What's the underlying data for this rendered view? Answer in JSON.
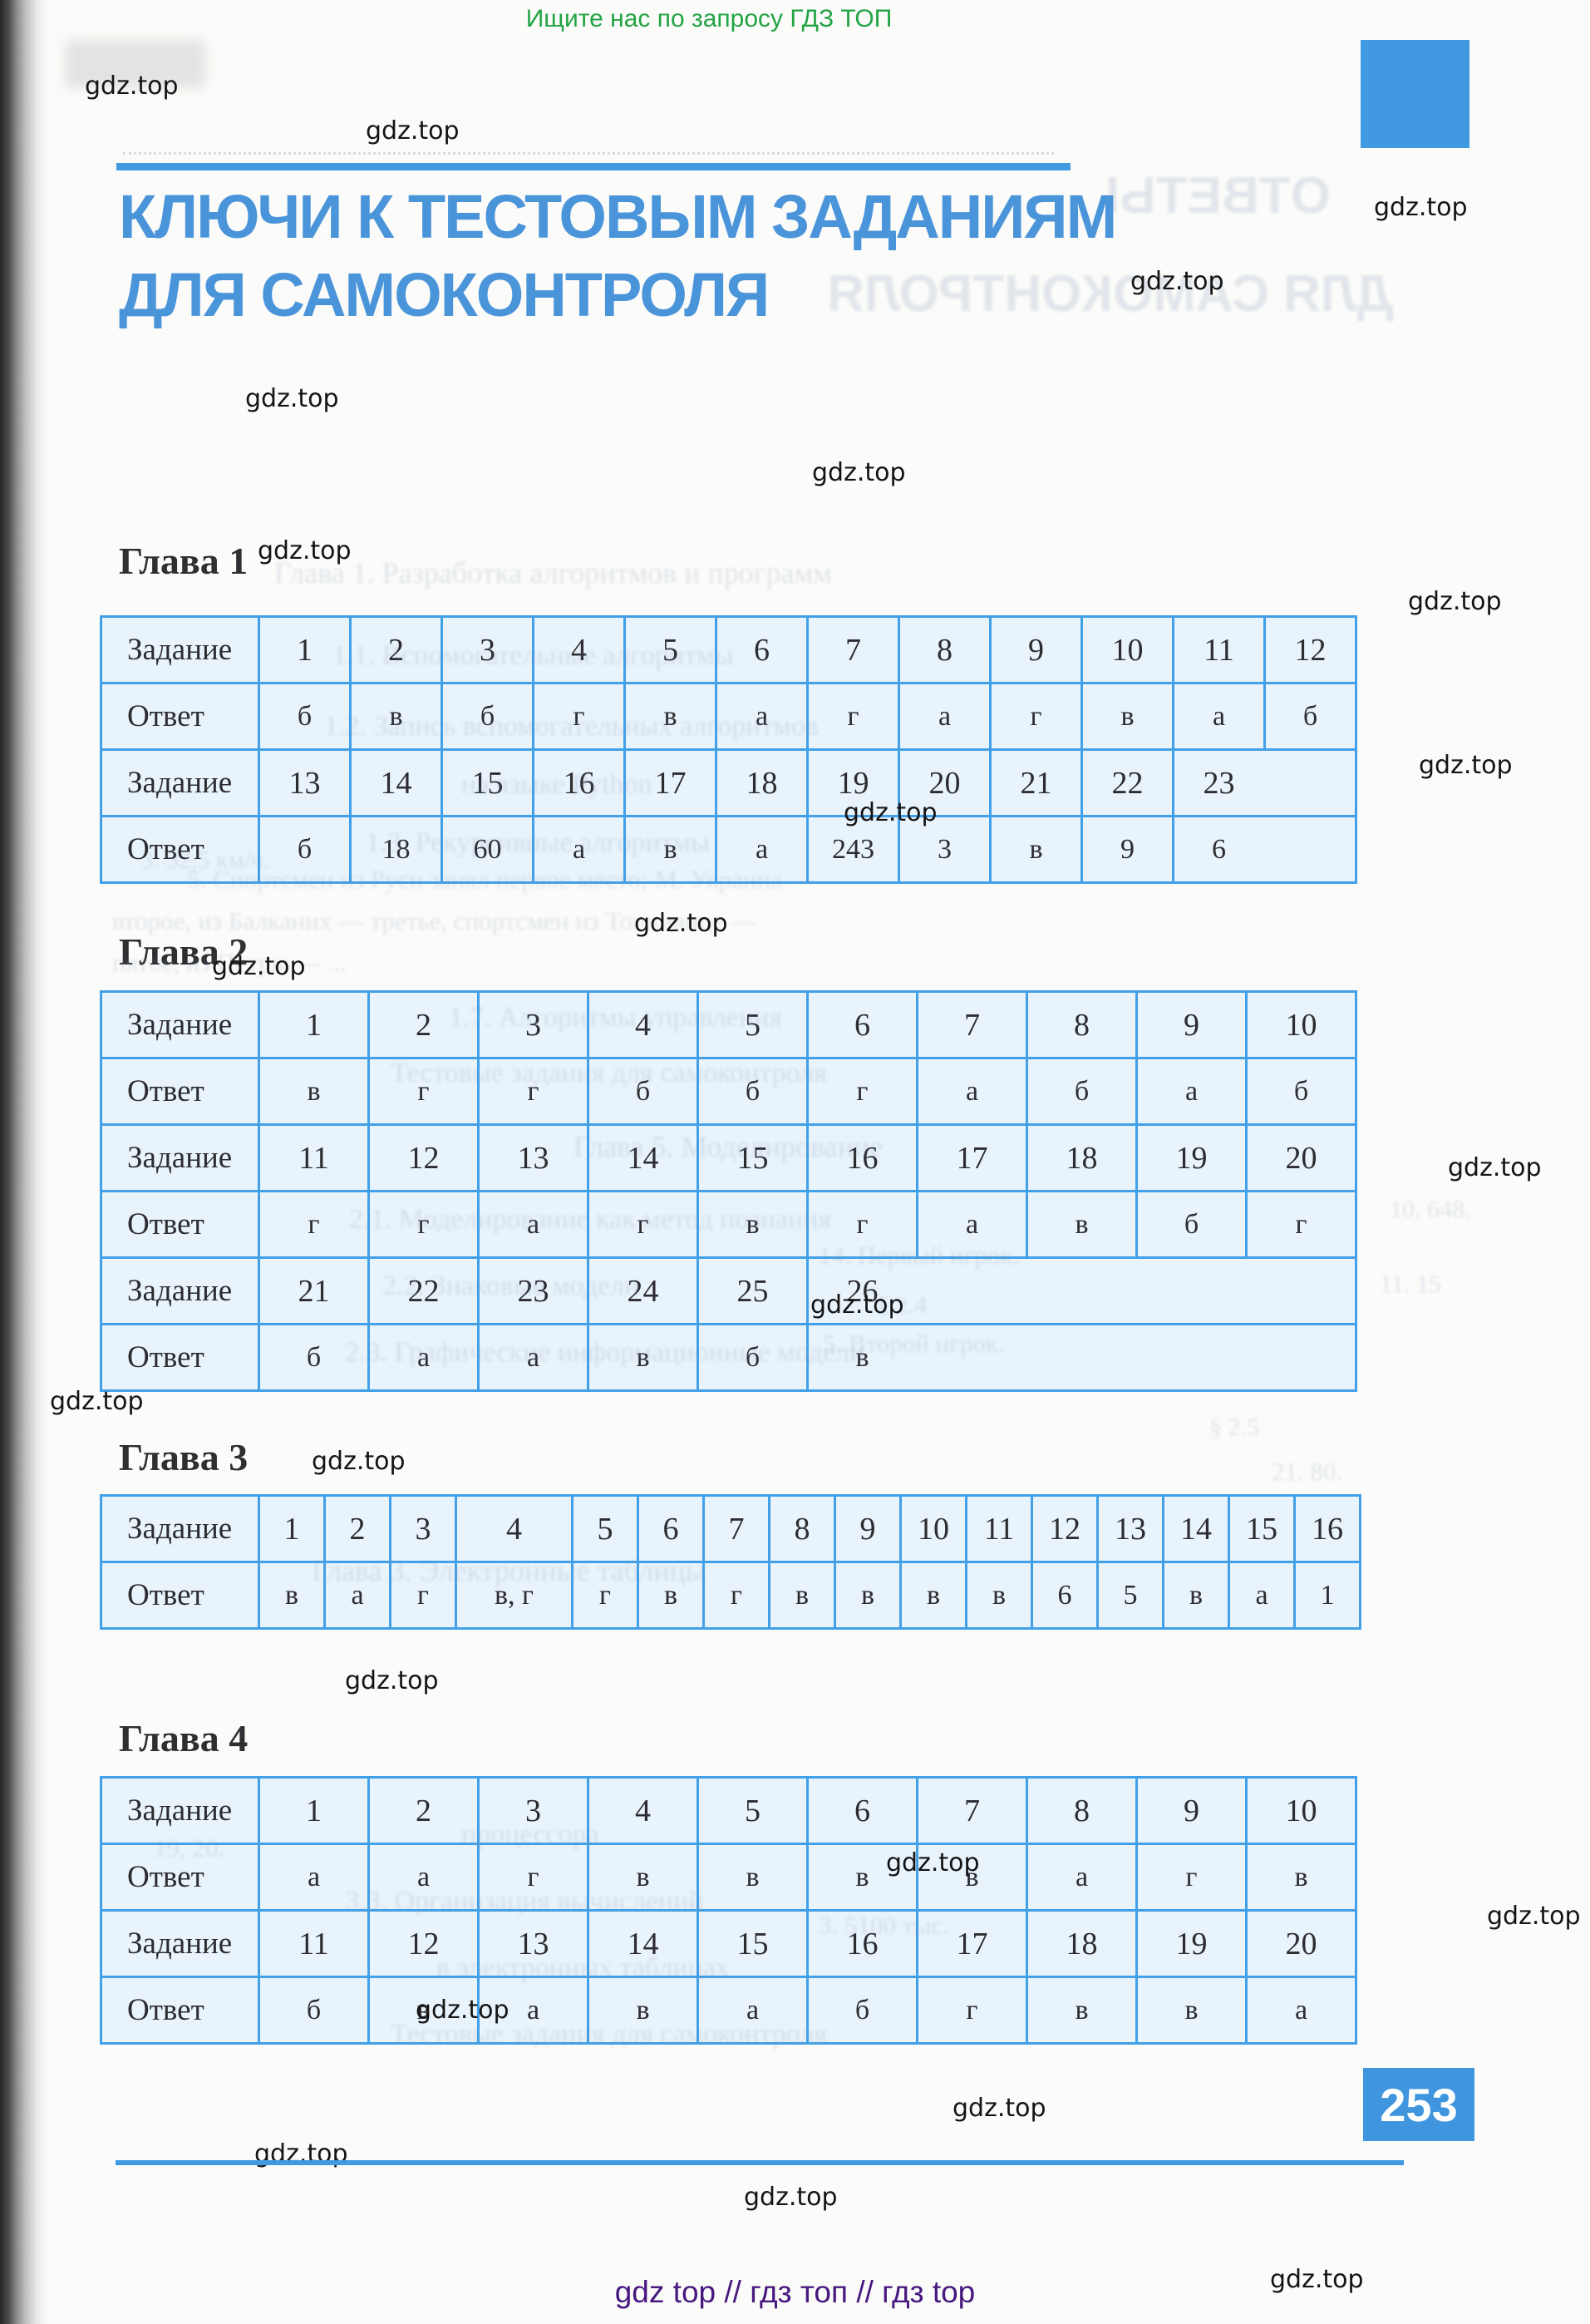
{
  "page": {
    "header_notice": "Ищите нас по запросу ГДЗ ТОП",
    "watermark": "gdz.top",
    "title_line1": "КЛЮЧИ К ТЕСТОВЫМ ЗАДАНИЯМ",
    "title_line2": "ДЛЯ САМОКОНТРОЛЯ",
    "page_number": "253",
    "footer": "gdz top  //  гдз топ  //  гдз top"
  },
  "labels": {
    "task": "Задание",
    "answer": "Ответ"
  },
  "chapters": [
    {
      "heading": "Глава 1",
      "strips": [
        {
          "tasks": [
            "1",
            "2",
            "3",
            "4",
            "5",
            "6",
            "7",
            "8",
            "9",
            "10",
            "11",
            "12"
          ],
          "answers": [
            "б",
            "в",
            "б",
            "г",
            "в",
            "а",
            "г",
            "а",
            "г",
            "в",
            "а",
            "б"
          ]
        },
        {
          "tasks": [
            "13",
            "14",
            "15",
            "16",
            "17",
            "18",
            "19",
            "20",
            "21",
            "22",
            "23"
          ],
          "answers": [
            "б",
            "18",
            "60",
            "а",
            "в",
            "а",
            "243",
            "3",
            "в",
            "9",
            "6"
          ]
        }
      ]
    },
    {
      "heading": "Глава 2",
      "strips": [
        {
          "tasks": [
            "1",
            "2",
            "3",
            "4",
            "5",
            "6",
            "7",
            "8",
            "9",
            "10"
          ],
          "answers": [
            "в",
            "г",
            "г",
            "б",
            "б",
            "г",
            "а",
            "б",
            "а",
            "б"
          ]
        },
        {
          "tasks": [
            "11",
            "12",
            "13",
            "14",
            "15",
            "16",
            "17",
            "18",
            "19",
            "20"
          ],
          "answers": [
            "г",
            "г",
            "а",
            "г",
            "в",
            "г",
            "а",
            "в",
            "б",
            "г"
          ]
        },
        {
          "tasks": [
            "21",
            "22",
            "23",
            "24",
            "25",
            "26"
          ],
          "answers": [
            "б",
            "а",
            "а",
            "в",
            "б",
            "в"
          ]
        }
      ]
    },
    {
      "heading": "Глава 3",
      "strips": [
        {
          "tasks": [
            "1",
            "2",
            "3",
            "4",
            "5",
            "6",
            "7",
            "8",
            "9",
            "10",
            "11",
            "12",
            "13",
            "14",
            "15",
            "16"
          ],
          "answers": [
            "в",
            "а",
            "г",
            "в, г",
            "г",
            "в",
            "г",
            "в",
            "в",
            "в",
            "в",
            "6",
            "5",
            "в",
            "а",
            "1"
          ]
        }
      ]
    },
    {
      "heading": "Глава 4",
      "strips": [
        {
          "tasks": [
            "1",
            "2",
            "3",
            "4",
            "5",
            "6",
            "7",
            "8",
            "9",
            "10"
          ],
          "answers": [
            "а",
            "а",
            "г",
            "в",
            "в",
            "в",
            "в",
            "а",
            "г",
            "в"
          ]
        },
        {
          "tasks": [
            "11",
            "12",
            "13",
            "14",
            "15",
            "16",
            "17",
            "18",
            "19",
            "20"
          ],
          "answers": [
            "б",
            "в",
            "а",
            "в",
            "а",
            "б",
            "г",
            "в",
            "в",
            "а"
          ]
        }
      ]
    }
  ],
  "ghosts": [
    {
      "text": "ОТВЕТЫ"
    },
    {
      "text": "ДЛЯ САМОКОНТРОЛЯ"
    },
    {
      "text": "Глава 1.  Разработка алгоритмов и программ"
    },
    {
      "text": "1.1. Вспомогательные алгоритмы"
    },
    {
      "text": "1.2. Запись вспомогательных алгоритмов"
    },
    {
      "text": "на языке Python"
    },
    {
      "text": "1.3. Рекурсивные алгоритмы"
    },
    {
      "text": "3. 32,5 км/ч."
    },
    {
      "text": "5. Спортсмен из Руси занял первое место; М. Украина —"
    },
    {
      "text": "второе, из Балканих — третье, спортсмен из Топливице —"
    },
    {
      "text": "пятое, из Петры — ..."
    },
    {
      "text": "1.7. Алгоритмы управления"
    },
    {
      "text": "Тестовые задания для самоконтроля"
    },
    {
      "text": "Глава 5.  Моделирование"
    },
    {
      "text": "2.1. Моделирование как метод познания"
    },
    {
      "text": "2.2. Знаковые модели"
    },
    {
      "text": "2.3. Графические информационные модели"
    },
    {
      "text": "14. Первый игрок."
    },
    {
      "text": "5. Второй игрок."
    },
    {
      "text": "§ 2.4"
    },
    {
      "text": "§ 2.5"
    },
    {
      "text": "21. 80."
    },
    {
      "text": "Глава 3.  Электронные таблицы"
    },
    {
      "text": "процессора"
    },
    {
      "text": "3.3. Организация вычислений"
    },
    {
      "text": "в электронных таблицах"
    },
    {
      "text": "Тестовые задания для самоконтроля"
    },
    {
      "text": "3. 5100 тыс."
    },
    {
      "text": "19, 20."
    },
    {
      "text": "10. 648."
    },
    {
      "text": "11. 15"
    }
  ]
}
